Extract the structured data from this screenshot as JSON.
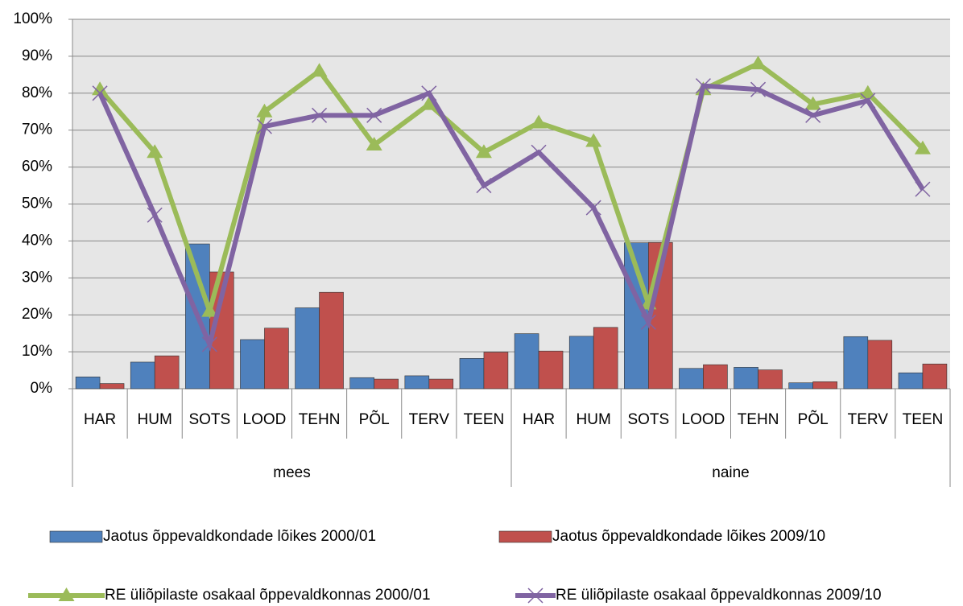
{
  "chart_data": {
    "type": "bar_line",
    "categories": [
      "HAR",
      "HUM",
      "SOTS",
      "LOOD",
      "TEHN",
      "PÕL",
      "TERV",
      "TEEN",
      "HAR",
      "HUM",
      "SOTS",
      "LOOD",
      "TEHN",
      "PÕL",
      "TERV",
      "TEEN"
    ],
    "groups": [
      "mees",
      "naine"
    ],
    "series": [
      {
        "name": "Jaotus õppevaldkondade lõikes 2000/01",
        "type": "bar",
        "color": "#4f81bd",
        "values": [
          3.2,
          7.2,
          39.2,
          13.3,
          21.9,
          3.0,
          3.5,
          8.2,
          14.9,
          14.2,
          39.5,
          5.5,
          5.8,
          1.6,
          14.1,
          4.3
        ]
      },
      {
        "name": "Jaotus õppevaldkondade lõikes 2009/10",
        "type": "bar",
        "color": "#c0504d",
        "values": [
          1.4,
          8.9,
          31.6,
          16.4,
          26.1,
          2.6,
          2.6,
          9.9,
          10.2,
          16.6,
          39.6,
          6.5,
          5.1,
          1.9,
          13.1,
          6.7
        ]
      },
      {
        "name": "RE üliõpilaste osakaal õppevaldkonnas 2000/01",
        "type": "line",
        "marker": "triangle",
        "color": "#9bbb59",
        "values": [
          81,
          64,
          21,
          75,
          86,
          66,
          77,
          64,
          72,
          67,
          23,
          81,
          88,
          77,
          80,
          65
        ]
      },
      {
        "name": "RE üliõpilaste osakaal õppevaldkonnas 2009/10",
        "type": "line",
        "marker": "x",
        "color": "#8064a2",
        "values": [
          80,
          47,
          12,
          71,
          74,
          74,
          80,
          55,
          64,
          49,
          18,
          82,
          81,
          74,
          78,
          54
        ]
      }
    ],
    "ylim": [
      0,
      100
    ],
    "yticks": [
      {
        "value": 0,
        "label": "0%"
      },
      {
        "value": 10,
        "label": "10%"
      },
      {
        "value": 20,
        "label": "20%"
      },
      {
        "value": 30,
        "label": "30%"
      },
      {
        "value": 40,
        "label": "40%"
      },
      {
        "value": 50,
        "label": "50%"
      },
      {
        "value": 60,
        "label": "60%"
      },
      {
        "value": 70,
        "label": "70%"
      },
      {
        "value": 80,
        "label": "80%"
      },
      {
        "value": 90,
        "label": "90%"
      },
      {
        "value": 100,
        "label": "100%"
      }
    ],
    "grid": true
  }
}
